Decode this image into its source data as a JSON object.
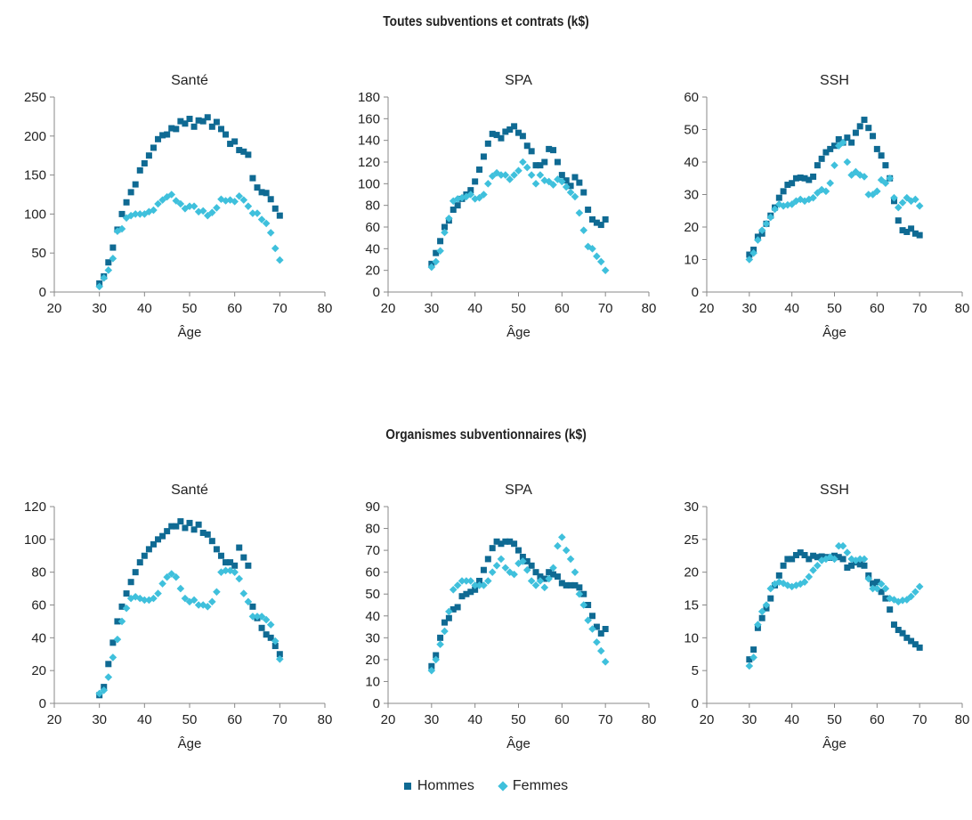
{
  "titles": {
    "top": "Toutes subventions et contrats  (k$)",
    "bottom": "Organismes subventionnaires (k$)"
  },
  "legend": {
    "hommes": "Hommes",
    "femmes": "Femmes"
  },
  "colors": {
    "hommes": "#0f6a93",
    "femmes": "#3fc0dc",
    "axis": "#888888"
  },
  "chart_data": [
    {
      "type": "scatter",
      "title": "Santé",
      "xlabel": "Âge",
      "ylabel": "",
      "xlim": [
        20,
        80
      ],
      "xticks": [
        20,
        30,
        40,
        50,
        60,
        70,
        80
      ],
      "ylim": [
        0,
        250
      ],
      "yticks": [
        0,
        50,
        100,
        150,
        200,
        250
      ],
      "grid": false,
      "x": [
        30,
        31,
        32,
        33,
        34,
        35,
        36,
        37,
        38,
        39,
        40,
        41,
        42,
        43,
        44,
        45,
        46,
        47,
        48,
        49,
        50,
        51,
        52,
        53,
        54,
        55,
        56,
        57,
        58,
        59,
        60,
        61,
        62,
        63,
        64,
        65,
        66,
        67,
        68,
        69,
        70
      ],
      "series": [
        {
          "name": "Hommes",
          "marker": "square",
          "values": [
            11,
            20,
            38,
            57,
            80,
            100,
            115,
            128,
            138,
            156,
            165,
            175,
            185,
            196,
            201,
            202,
            210,
            209,
            219,
            216,
            222,
            212,
            220,
            219,
            224,
            212,
            218,
            209,
            202,
            190,
            193,
            182,
            180,
            176,
            146,
            134,
            128,
            127,
            119,
            107,
            98
          ]
        },
        {
          "name": "Femmes",
          "marker": "diamond",
          "values": [
            7,
            18,
            28,
            43,
            78,
            81,
            95,
            98,
            100,
            100,
            100,
            103,
            105,
            113,
            118,
            122,
            125,
            117,
            113,
            107,
            110,
            110,
            103,
            104,
            98,
            102,
            108,
            119,
            117,
            118,
            116,
            123,
            118,
            110,
            101,
            101,
            93,
            88,
            76,
            56,
            41
          ]
        }
      ]
    },
    {
      "type": "scatter",
      "title": "SPA",
      "xlabel": "Âge",
      "ylabel": "",
      "xlim": [
        20,
        80
      ],
      "xticks": [
        20,
        30,
        40,
        50,
        60,
        70,
        80
      ],
      "ylim": [
        0,
        180
      ],
      "yticks": [
        0,
        20,
        40,
        60,
        80,
        100,
        120,
        140,
        160,
        180
      ],
      "grid": false,
      "x": [
        30,
        31,
        32,
        33,
        34,
        35,
        36,
        37,
        38,
        39,
        40,
        41,
        42,
        43,
        44,
        45,
        46,
        47,
        48,
        49,
        50,
        51,
        52,
        53,
        54,
        55,
        56,
        57,
        58,
        59,
        60,
        61,
        62,
        63,
        64,
        65,
        66,
        67,
        68,
        69,
        70
      ],
      "series": [
        {
          "name": "Hommes",
          "marker": "square",
          "values": [
            26,
            36,
            47,
            60,
            66,
            76,
            80,
            86,
            90,
            94,
            102,
            113,
            125,
            137,
            146,
            145,
            142,
            148,
            150,
            153,
            147,
            144,
            135,
            130,
            117,
            117,
            120,
            132,
            131,
            120,
            108,
            103,
            98,
            106,
            101,
            92,
            76,
            67,
            64,
            62,
            67
          ]
        },
        {
          "name": "Femmes",
          "marker": "diamond",
          "values": [
            23,
            28,
            38,
            55,
            68,
            84,
            86,
            87,
            88,
            90,
            86,
            87,
            90,
            100,
            107,
            110,
            108,
            108,
            104,
            108,
            112,
            120,
            115,
            108,
            100,
            108,
            103,
            102,
            99,
            104,
            102,
            97,
            92,
            88,
            73,
            57,
            42,
            40,
            33,
            28,
            20
          ]
        }
      ]
    },
    {
      "type": "scatter",
      "title": "SSH",
      "xlabel": "Âge",
      "ylabel": "",
      "xlim": [
        20,
        80
      ],
      "xticks": [
        20,
        30,
        40,
        50,
        60,
        70,
        80
      ],
      "ylim": [
        0,
        60
      ],
      "yticks": [
        0,
        10,
        20,
        30,
        40,
        50,
        60
      ],
      "grid": false,
      "x": [
        30,
        31,
        32,
        33,
        34,
        35,
        36,
        37,
        38,
        39,
        40,
        41,
        42,
        43,
        44,
        45,
        46,
        47,
        48,
        49,
        50,
        51,
        52,
        53,
        54,
        55,
        56,
        57,
        58,
        59,
        60,
        61,
        62,
        63,
        64,
        65,
        66,
        67,
        68,
        69,
        70
      ],
      "series": [
        {
          "name": "Hommes",
          "marker": "square",
          "values": [
            11.5,
            13,
            17,
            18,
            21,
            23.5,
            26,
            29,
            31,
            33,
            33.5,
            35,
            35.2,
            35,
            34.5,
            35.5,
            39,
            41,
            43,
            44,
            45,
            47,
            46,
            47.5,
            46,
            49,
            51,
            53,
            50.5,
            48,
            44,
            42,
            39,
            35,
            28,
            22,
            19,
            18.5,
            19.5,
            18,
            17.5
          ]
        },
        {
          "name": "Femmes",
          "marker": "diamond",
          "values": [
            10,
            12,
            16,
            19,
            21,
            23,
            25.5,
            27,
            26.5,
            26.8,
            27,
            28,
            28.5,
            28,
            28.5,
            29,
            30.5,
            31.5,
            31,
            33.5,
            39,
            45,
            46,
            40,
            36,
            37,
            36,
            35.5,
            30,
            30,
            31,
            34.5,
            33.5,
            35,
            29,
            26,
            27.5,
            29,
            28,
            28.5,
            26.5
          ]
        }
      ]
    },
    {
      "type": "scatter",
      "title": "Santé",
      "xlabel": "Âge",
      "ylabel": "",
      "xlim": [
        20,
        80
      ],
      "xticks": [
        20,
        30,
        40,
        50,
        60,
        70,
        80
      ],
      "ylim": [
        0,
        120
      ],
      "yticks": [
        0,
        20,
        40,
        60,
        80,
        100,
        120
      ],
      "grid": false,
      "x": [
        30,
        31,
        32,
        33,
        34,
        35,
        36,
        37,
        38,
        39,
        40,
        41,
        42,
        43,
        44,
        45,
        46,
        47,
        48,
        49,
        50,
        51,
        52,
        53,
        54,
        55,
        56,
        57,
        58,
        59,
        60,
        61,
        62,
        63,
        64,
        65,
        66,
        67,
        68,
        69,
        70
      ],
      "series": [
        {
          "name": "Hommes",
          "marker": "square",
          "values": [
            5,
            10,
            24,
            37,
            50,
            59,
            67,
            74,
            80,
            86,
            90,
            94,
            97,
            100,
            102,
            105,
            108,
            108,
            111,
            107,
            110,
            106,
            109,
            104,
            103,
            99,
            94,
            90,
            86,
            86,
            84,
            95,
            89,
            84,
            59,
            52,
            46,
            42,
            40,
            35,
            30
          ]
        },
        {
          "name": "Femmes",
          "marker": "diamond",
          "values": [
            6,
            8,
            16,
            28,
            39,
            50,
            58,
            64,
            65,
            64,
            63,
            63,
            64,
            67,
            73,
            77,
            79,
            77,
            70,
            64,
            62,
            63,
            60,
            60,
            59,
            62,
            68,
            80,
            81,
            81,
            80,
            76,
            67,
            62,
            53,
            53,
            53,
            51,
            48,
            38,
            27
          ]
        }
      ]
    },
    {
      "type": "scatter",
      "title": "SPA",
      "xlabel": "Âge",
      "ylabel": "",
      "xlim": [
        20,
        80
      ],
      "xticks": [
        20,
        30,
        40,
        50,
        60,
        70,
        80
      ],
      "ylim": [
        0,
        90
      ],
      "yticks": [
        0,
        10,
        20,
        30,
        40,
        50,
        60,
        70,
        80,
        90
      ],
      "grid": false,
      "x": [
        30,
        31,
        32,
        33,
        34,
        35,
        36,
        37,
        38,
        39,
        40,
        41,
        42,
        43,
        44,
        45,
        46,
        47,
        48,
        49,
        50,
        51,
        52,
        53,
        54,
        55,
        56,
        57,
        58,
        59,
        60,
        61,
        62,
        63,
        64,
        65,
        66,
        67,
        68,
        69,
        70
      ],
      "series": [
        {
          "name": "Hommes",
          "marker": "square",
          "values": [
            17,
            22,
            30,
            37,
            39,
            43,
            44,
            49,
            50,
            51,
            52,
            56,
            61,
            66,
            71,
            74,
            73,
            74,
            74,
            73,
            70,
            67,
            65,
            63,
            60,
            58,
            57,
            60,
            59,
            58,
            55,
            54,
            54,
            54,
            53,
            50,
            45,
            40,
            35,
            32,
            34
          ]
        },
        {
          "name": "Femmes",
          "marker": "diamond",
          "values": [
            15,
            20,
            27,
            33,
            42,
            52,
            54,
            56,
            56,
            56,
            54,
            54,
            54,
            56,
            60,
            63,
            66,
            62,
            60,
            59,
            64,
            65,
            61,
            56,
            54,
            56,
            53,
            57,
            62,
            72,
            76,
            70,
            66,
            60,
            50,
            45,
            38,
            34,
            28,
            24,
            19
          ]
        }
      ]
    },
    {
      "type": "scatter",
      "title": "SSH",
      "xlabel": "Âge",
      "ylabel": "",
      "xlim": [
        20,
        80
      ],
      "xticks": [
        20,
        30,
        40,
        50,
        60,
        70,
        80
      ],
      "ylim": [
        0,
        30
      ],
      "yticks": [
        0,
        5,
        10,
        15,
        20,
        25,
        30
      ],
      "grid": false,
      "x": [
        30,
        31,
        32,
        33,
        34,
        35,
        36,
        37,
        38,
        39,
        40,
        41,
        42,
        43,
        44,
        45,
        46,
        47,
        48,
        49,
        50,
        51,
        52,
        53,
        54,
        55,
        56,
        57,
        58,
        59,
        60,
        61,
        62,
        63,
        64,
        65,
        66,
        67,
        68,
        69,
        70
      ],
      "series": [
        {
          "name": "Hommes",
          "marker": "square",
          "values": [
            6.7,
            8.2,
            11.5,
            13,
            14.5,
            16,
            18,
            19.5,
            21,
            22,
            22,
            22.6,
            23,
            22.6,
            22,
            22.5,
            22.3,
            22.4,
            22.3,
            22.2,
            22.5,
            22.3,
            22,
            20.7,
            21,
            21.5,
            21.2,
            21,
            19.5,
            18.3,
            18.5,
            17,
            16,
            14.3,
            12,
            11.2,
            10.7,
            10,
            9.5,
            9,
            8.5
          ]
        },
        {
          "name": "Femmes",
          "marker": "diamond",
          "values": [
            5.7,
            7,
            12,
            14,
            15,
            17.5,
            18.2,
            18.5,
            18.3,
            18,
            17.8,
            18,
            18.2,
            18.5,
            19.3,
            20.3,
            21,
            21.8,
            22,
            22.3,
            22,
            24,
            24,
            23,
            22,
            21.8,
            22,
            22,
            19,
            17.5,
            17.5,
            18.2,
            17.5,
            16,
            15.8,
            15.5,
            15.7,
            15.8,
            16.3,
            17,
            17.8
          ]
        }
      ]
    }
  ]
}
